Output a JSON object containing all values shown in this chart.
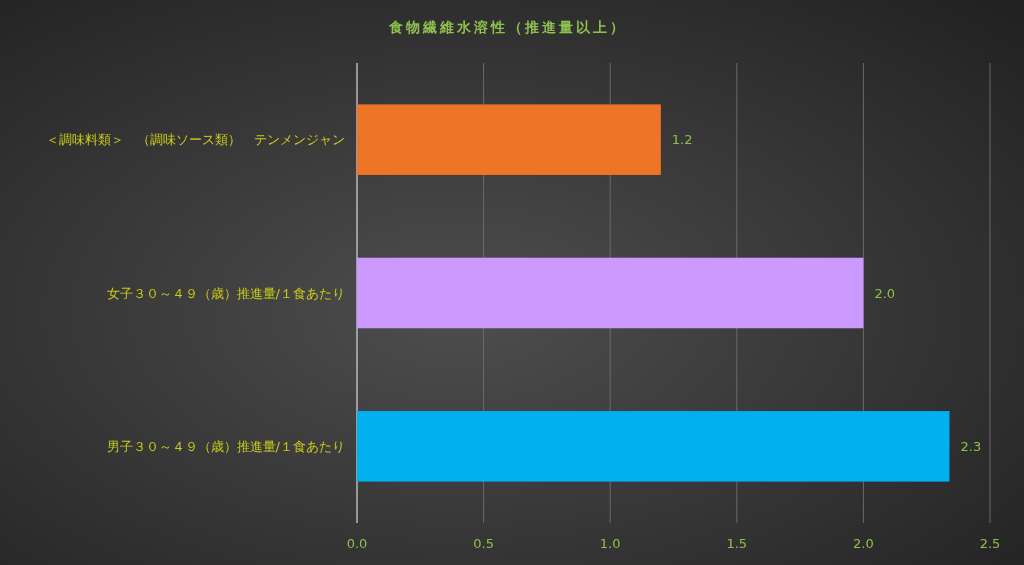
{
  "chart_data": {
    "type": "bar",
    "orientation": "horizontal",
    "title": "食物繊維水溶性（推進量以上）",
    "categories": [
      "＜調味料類＞　（調味ソース類）　テンメンジャン",
      "女子３０～４９（歳）推進量/１食あたり",
      "男子３０～４９（歳）推進量/１食あたり"
    ],
    "values": [
      1.2,
      2.0,
      2.34
    ],
    "colors": [
      "#ee7428",
      "#cc99ff",
      "#00b0f0"
    ],
    "value_labels": [
      "1.2",
      "2.0",
      "2.3"
    ],
    "xlim": [
      0,
      2.5
    ],
    "xticks": [
      {
        "value": 0,
        "label": "0.0"
      },
      0.5,
      {
        "value": 1,
        "label": "1.0"
      },
      1.5,
      {
        "value": 2,
        "label": "2.0"
      },
      2.5
    ],
    "grid": "x"
  }
}
